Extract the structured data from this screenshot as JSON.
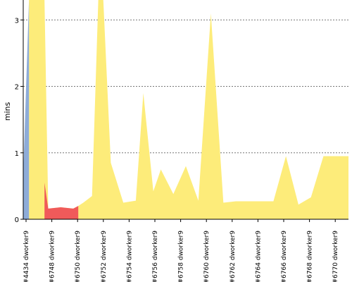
{
  "chart_data": {
    "type": "area",
    "ylabel": "mins",
    "ylim": [
      0,
      3.3
    ],
    "yticks": [
      0,
      1,
      2,
      3
    ],
    "grid": true,
    "tick_labels": [
      "#4434 dworker9",
      "#6748 dworker9",
      "#6750 dworker9",
      "#6752 dworker9",
      "#6754 dworker9",
      "#6756 dworker9",
      "#6758 dworker9",
      "#6760 dworker9",
      "#6762 dworker9",
      "#6764 dworker9",
      "#6766 dworker9",
      "#6768 dworker9",
      "#6770 dworker9"
    ],
    "colors": {
      "blue": "#8eacd8",
      "red": "#f05a5a",
      "yellow": "#fdec7a"
    },
    "blue": {
      "x": [
        0,
        0.23
      ],
      "y": [
        0.7,
        3.3
      ]
    },
    "red": {
      "x": [
        0.85,
        1,
        1.5,
        2,
        2.2
      ],
      "y": [
        0.55,
        0.16,
        0.18,
        0.16,
        0.2
      ]
    },
    "yellow": {
      "x": [
        0.23,
        0.85,
        1,
        1.5,
        2,
        2.2,
        2.4,
        2.75,
        3.0,
        3.2,
        3.5,
        4.0,
        4.5,
        4.8,
        5.2,
        5.5,
        6.0,
        6.5,
        7.0,
        7.5,
        8.0,
        8.5,
        9.0,
        9.5,
        10.0,
        10.5,
        11.0,
        11.5,
        12.0,
        12.5,
        13.0
      ],
      "y": [
        3.3,
        3.3,
        0.16,
        0.18,
        0.16,
        0.2,
        0.25,
        0.35,
        3.3,
        3.3,
        0.85,
        0.25,
        0.28,
        1.9,
        0.42,
        0.75,
        0.38,
        0.8,
        0.28,
        3.1,
        0.25,
        0.27,
        0.27,
        0.27,
        0.27,
        0.95,
        0.22,
        0.33,
        0.95,
        0.95,
        0.95
      ]
    }
  }
}
